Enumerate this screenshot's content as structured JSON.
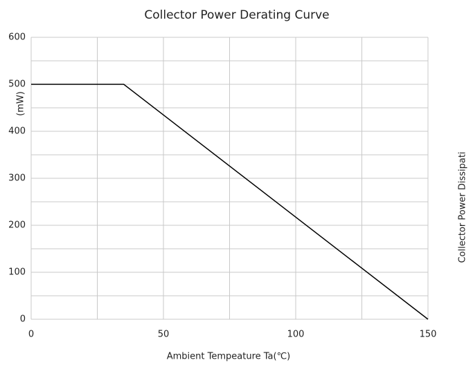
{
  "chart_data": {
    "type": "line",
    "title": "Collector Power Derating Curve",
    "xlabel": "Ambient Tempeature Ta(℃)",
    "ylabel": "(mW)",
    "right_label": "Collector Power Dissipati",
    "x": [
      0,
      35,
      150
    ],
    "series": [
      {
        "color": "#000000",
        "values": [
          500,
          500,
          0
        ]
      }
    ],
    "xlim": [
      0,
      150
    ],
    "xticks": [
      0,
      50,
      100,
      150
    ],
    "x_minor_ticks": [
      25,
      75,
      125
    ],
    "ylim": [
      0,
      600
    ],
    "yticks": [
      0,
      100,
      200,
      300,
      400,
      500,
      600
    ],
    "y_minor_ticks": [
      50,
      150,
      250,
      350,
      450,
      550
    ],
    "grid": true
  }
}
